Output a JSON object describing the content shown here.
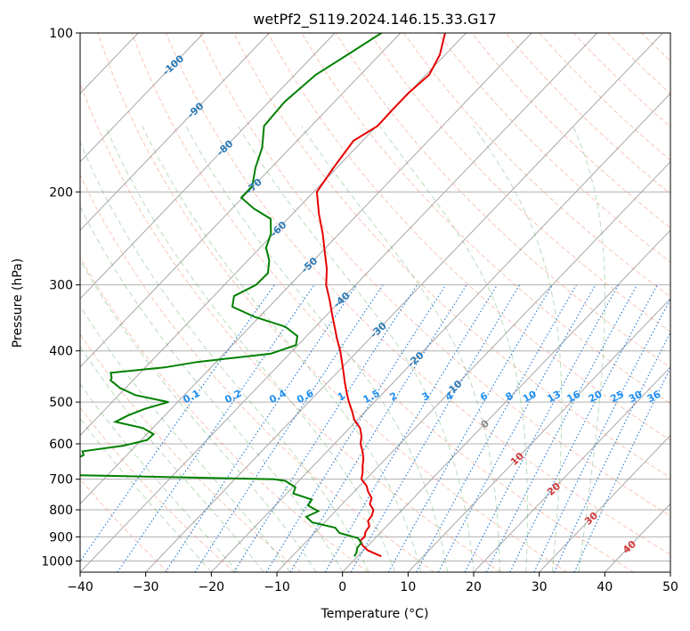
{
  "chart_data": {
    "type": "line",
    "title": "wetPf2_S119.2024.146.15.33.G17",
    "xlabel": "Temperature (°C)",
    "ylabel": "Pressure (hPa)",
    "xlim": [
      -40,
      50
    ],
    "ylim": [
      1050,
      100
    ],
    "y_scale": "log",
    "grid": true,
    "x_ticks": [
      -40,
      -30,
      -20,
      -10,
      0,
      10,
      20,
      30,
      40,
      50
    ],
    "y_ticks": [
      100,
      200,
      300,
      400,
      500,
      600,
      700,
      800,
      900,
      1000
    ],
    "skew": true,
    "series": [
      {
        "color": "#e60000",
        "pressure": [
          980,
          955,
          935,
          915,
          900,
          880,
          860,
          840,
          820,
          800,
          780,
          760,
          740,
          720,
          700,
          680,
          660,
          640,
          620,
          600,
          580,
          560,
          540,
          520,
          500,
          480,
          460,
          440,
          420,
          400,
          380,
          360,
          340,
          320,
          300,
          280,
          260,
          240,
          220,
          200,
          180,
          160,
          150,
          140,
          130,
          120,
          110,
          100
        ],
        "temperature": [
          3.6,
          0.7,
          -0.8,
          -1.9,
          -1.8,
          -2.4,
          -2.6,
          -3.6,
          -3.8,
          -4.4,
          -5.8,
          -6.4,
          -7.8,
          -9.0,
          -10.7,
          -11.5,
          -12.5,
          -13.4,
          -14.6,
          -16.0,
          -17.0,
          -18.4,
          -20.5,
          -22.1,
          -23.9,
          -25.6,
          -27.3,
          -29.0,
          -30.8,
          -32.7,
          -34.9,
          -37.1,
          -39.4,
          -41.8,
          -44.5,
          -46.7,
          -49.5,
          -52.5,
          -56.0,
          -59.5,
          -60.5,
          -61.4,
          -59.9,
          -60.0,
          -60.0,
          -59.5,
          -60.8,
          -63.2
        ]
      },
      {
        "color": "#008000",
        "pressure": [
          980,
          965,
          945,
          925,
          905,
          885,
          865,
          845,
          825,
          805,
          785,
          765,
          745,
          725,
          705,
          700,
          685,
          670,
          660,
          650,
          640,
          630,
          620,
          605,
          590,
          575,
          560,
          545,
          530,
          515,
          500,
          485,
          470,
          455,
          450,
          440,
          430,
          420,
          405,
          390,
          375,
          360,
          345,
          330,
          315,
          300,
          285,
          270,
          255,
          240,
          225,
          215,
          205,
          195,
          180,
          165,
          150,
          135,
          120,
          110,
          100
        ],
        "dewpoint": [
          -0.5,
          -0.7,
          -1.3,
          -1.4,
          -2.6,
          -6.2,
          -7.6,
          -11.9,
          -13.6,
          -12.6,
          -15.0,
          -15.3,
          -19.0,
          -19.6,
          -22.1,
          -24.0,
          -62.0,
          -63.5,
          -64.7,
          -59.4,
          -57.2,
          -56.6,
          -57.3,
          -51.9,
          -49.1,
          -49.0,
          -51.5,
          -56.6,
          -55.6,
          -54.0,
          -51.4,
          -57.5,
          -60.9,
          -63.4,
          -63.6,
          -64.5,
          -57.1,
          -52.9,
          -42.9,
          -40.3,
          -41.4,
          -44.6,
          -50.7,
          -55.6,
          -56.9,
          -55.2,
          -55.1,
          -56.7,
          -59.1,
          -60.4,
          -62.6,
          -66.7,
          -70.2,
          -70.2,
          -72.4,
          -74.3,
          -77.2,
          -77.6,
          -76.8,
          -74.9,
          -72.9
        ]
      }
    ],
    "mixing_ratio_labels": [
      "0.1",
      "0.2",
      "0.4",
      "0.6",
      "1",
      "1.5",
      "2",
      "3",
      "4",
      "6",
      "8",
      "10",
      "13",
      "16",
      "20",
      "25",
      "30",
      "36"
    ],
    "mixing_ratio_values": [
      0.1,
      0.2,
      0.4,
      0.6,
      1,
      1.5,
      2,
      3,
      4,
      6,
      8,
      10,
      13,
      16,
      20,
      25,
      30,
      36
    ],
    "height_labels": [
      "-100",
      "-90",
      "-80",
      "-70",
      "-60",
      "-50",
      "-40",
      "-30",
      "-20",
      "-10",
      "0",
      "10",
      "20",
      "30",
      "40"
    ],
    "height_values": [
      -100,
      -90,
      -80,
      -70,
      -60,
      -50,
      -40,
      -30,
      -20,
      -10,
      0,
      10,
      20,
      30,
      40
    ],
    "height_label_pressure": [
      115,
      140,
      165,
      195,
      235,
      275,
      320,
      365,
      415,
      470,
      550,
      640,
      730,
      830,
      940
    ]
  }
}
